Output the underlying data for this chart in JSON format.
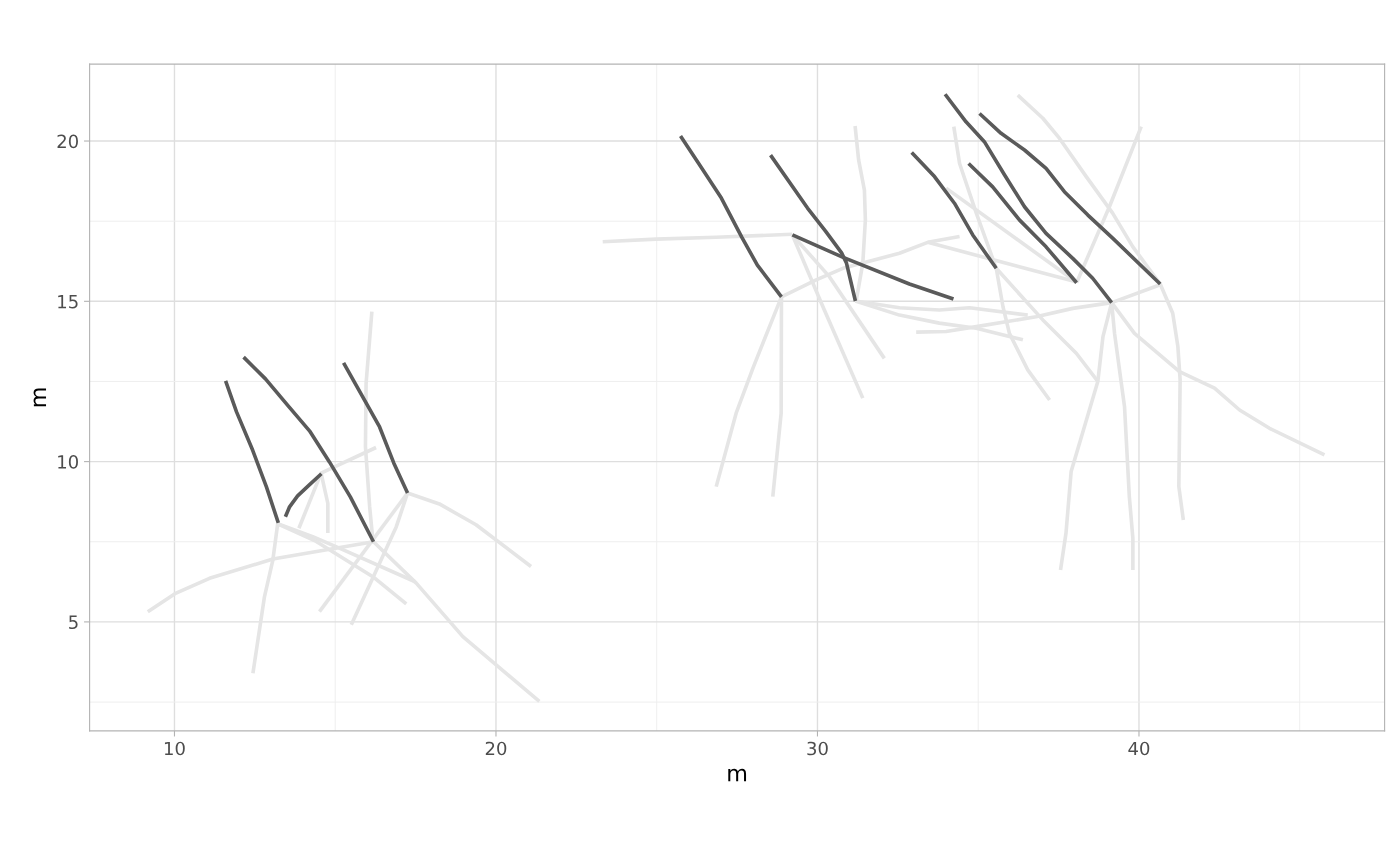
{
  "chart_data": {
    "type": "line",
    "xlabel": "m",
    "ylabel": "m",
    "xlim": [
      7.36,
      47.64
    ],
    "ylim": [
      1.6,
      22.4
    ],
    "xticks": [
      10,
      {
        "value": 15,
        "label": null
      },
      20,
      {
        "value": 25,
        "label": null
      },
      30,
      {
        "value": 35,
        "label": null
      },
      40,
      {
        "value": 45,
        "label": null
      }
    ],
    "yticks": [
      {
        "value": 2.5,
        "label": null
      },
      5,
      {
        "value": 7.5,
        "label": null
      },
      10,
      {
        "value": 12.5,
        "label": null
      },
      15,
      {
        "value": 17.5,
        "label": null
      },
      20
    ],
    "grid": true,
    "line_style": "solid",
    "marker": "none",
    "series": [
      {
        "color": "#e5e5e5",
        "x": [
          16.14,
          15.96,
          15.94,
          16.07,
          16.17
        ],
        "values": [
          14.68,
          12.44,
          10.47,
          8.6,
          7.56
        ]
      },
      {
        "color": "#e5e5e5",
        "x": [
          16.27,
          14.56,
          13.87
        ],
        "values": [
          10.44,
          9.64,
          7.92
        ]
      },
      {
        "color": "#e5e5e5",
        "x": [
          14.56,
          14.77,
          14.77
        ],
        "values": [
          9.64,
          8.7,
          7.77
        ]
      },
      {
        "color": "#e5e5e5",
        "x": [
          13.21,
          13.06,
          12.8,
          12.44
        ],
        "values": [
          8.06,
          6.93,
          5.79,
          3.4
        ]
      },
      {
        "color": "#e5e5e5",
        "x": [
          13.21,
          14.3,
          15.13,
          17.47
        ],
        "values": [
          8.06,
          7.66,
          7.3,
          6.26
        ]
      },
      {
        "color": "#e5e5e5",
        "x": [
          13.21,
          14.41,
          16.17,
          17.21
        ],
        "values": [
          8.06,
          7.51,
          6.41,
          5.56
        ]
      },
      {
        "color": "#e5e5e5",
        "x": [
          9.17,
          10.05,
          11.09,
          13.06,
          16.19
        ],
        "values": [
          5.32,
          5.9,
          6.36,
          6.96,
          7.5
        ]
      },
      {
        "color": "#e5e5e5",
        "x": [
          17.25,
          18.24,
          19.38,
          21.09
        ],
        "values": [
          9.02,
          8.68,
          8.03,
          6.73
        ]
      },
      {
        "color": "#e5e5e5",
        "x": [
          17.25,
          14.51
        ],
        "values": [
          9.02,
          5.32
        ]
      },
      {
        "color": "#e5e5e5",
        "x": [
          17.25,
          16.9,
          15.5
        ],
        "values": [
          9.02,
          7.97,
          4.91
        ]
      },
      {
        "color": "#e5e5e5",
        "x": [
          16.19,
          17.52,
          18.97,
          21.35
        ],
        "values": [
          7.5,
          6.21,
          4.54,
          2.52
        ]
      },
      {
        "color": "#e5e5e5",
        "x": [
          23.32,
          24.98,
          26.85,
          29.21
        ],
        "values": [
          16.86,
          16.94,
          17.0,
          17.09
        ]
      },
      {
        "color": "#e5e5e5",
        "x": [
          28.88,
          28.87,
          28.61
        ],
        "values": [
          15.14,
          11.51,
          8.91
        ]
      },
      {
        "color": "#e5e5e5",
        "x": [
          28.88,
          27.99,
          27.47,
          26.85
        ],
        "values": [
          15.14,
          12.91,
          11.51,
          9.22
        ]
      },
      {
        "color": "#e5e5e5",
        "x": [
          28.88,
          29.96,
          30.79,
          32.55,
          33.43,
          34.42
        ],
        "values": [
          15.14,
          15.67,
          16.03,
          16.5,
          16.84,
          17.02
        ]
      },
      {
        "color": "#e5e5e5",
        "x": [
          29.22,
          30.37,
          32.08
        ],
        "values": [
          17.07,
          15.77,
          13.22
        ]
      },
      {
        "color": "#e5e5e5",
        "x": [
          29.22,
          30.17,
          31.41
        ],
        "values": [
          17.07,
          14.83,
          11.98
        ]
      },
      {
        "color": "#e5e5e5",
        "x": [
          31.17,
          31.28,
          31.46,
          31.49,
          31.41,
          31.2
        ],
        "values": [
          20.47,
          19.41,
          18.47,
          17.54,
          16.19,
          14.99
        ]
      },
      {
        "color": "#e5e5e5",
        "x": [
          31.18,
          32.55,
          33.79,
          34.73,
          36.54
        ],
        "values": [
          15.01,
          14.8,
          14.73,
          14.8,
          14.57
        ]
      },
      {
        "color": "#e5e5e5",
        "x": [
          31.18,
          32.55,
          33.79,
          34.94,
          36.39
        ],
        "values": [
          15.01,
          14.57,
          14.32,
          14.16,
          13.8
        ]
      },
      {
        "color": "#e5e5e5",
        "x": [
          33.07,
          34.0,
          34.94,
          36.8,
          37.94,
          39.15,
          40.64
        ],
        "values": [
          14.04,
          14.06,
          14.21,
          14.52,
          14.78,
          14.96,
          15.51
        ]
      },
      {
        "color": "#e5e5e5",
        "x": [
          34.24,
          34.42,
          34.94,
          35.56,
          35.77,
          35.97,
          36.54,
          37.22
        ],
        "values": [
          20.45,
          19.3,
          17.75,
          16.03,
          14.83,
          14.0,
          12.86,
          11.92
        ]
      },
      {
        "color": "#e5e5e5",
        "x": [
          35.56,
          37.01,
          38.05,
          38.72
        ],
        "values": [
          16.03,
          14.42,
          13.38,
          12.5
        ]
      },
      {
        "color": "#e5e5e5",
        "x": [
          39.15,
          38.88,
          38.72,
          37.89,
          37.73,
          37.56
        ],
        "values": [
          14.96,
          13.9,
          12.5,
          9.69,
          7.77,
          6.62
        ]
      },
      {
        "color": "#e5e5e5",
        "x": [
          39.15,
          39.24,
          39.55,
          39.7,
          39.81,
          39.81
        ],
        "values": [
          14.96,
          14.0,
          11.72,
          8.91,
          7.61,
          6.62
        ]
      },
      {
        "color": "#e5e5e5",
        "x": [
          39.15,
          39.86,
          41.26,
          42.35,
          43.13,
          44.06,
          45.77
        ],
        "values": [
          14.96,
          14.0,
          12.81,
          12.29,
          11.61,
          11.04,
          10.21
        ]
      },
      {
        "color": "#e5e5e5",
        "x": [
          36.23,
          37.01,
          37.53,
          38.36,
          39.18,
          39.81,
          40.66,
          41.05,
          41.21,
          41.28,
          41.24,
          41.38
        ],
        "values": [
          21.43,
          20.71,
          20.08,
          18.89,
          17.75,
          16.7,
          15.54,
          14.63,
          13.59,
          12.55,
          9.22,
          8.18
        ]
      },
      {
        "color": "#e5e5e5",
        "x": [
          38.06,
          39.08,
          40.07
        ],
        "values": [
          15.58,
          17.95,
          20.45
        ]
      },
      {
        "color": "#e5e5e5",
        "x": [
          34.0,
          38.04
        ],
        "values": [
          18.53,
          15.61
        ]
      },
      {
        "color": "#e5e5e5",
        "x": [
          33.43,
          38.04
        ],
        "values": [
          16.84,
          15.61
        ]
      },
      {
        "color": "#5a5a5a",
        "x": [
          11.59,
          11.93,
          12.43,
          12.86,
          13.23
        ],
        "values": [
          12.52,
          11.55,
          10.36,
          9.21,
          8.09
        ]
      },
      {
        "color": "#5a5a5a",
        "x": [
          12.15,
          12.83,
          13.51,
          14.2,
          14.82,
          15.47,
          16.19
        ],
        "values": [
          13.26,
          12.58,
          11.77,
          10.96,
          9.99,
          8.9,
          7.5
        ]
      },
      {
        "color": "#5a5a5a",
        "x": [
          13.45,
          13.58,
          13.83,
          14.17,
          14.57
        ],
        "values": [
          8.28,
          8.59,
          8.93,
          9.25,
          9.62
        ]
      },
      {
        "color": "#5a5a5a",
        "x": [
          15.26,
          15.82,
          16.38,
          16.82,
          17.25
        ],
        "values": [
          13.08,
          12.08,
          11.08,
          9.96,
          9.02
        ]
      },
      {
        "color": "#5a5a5a",
        "x": [
          25.74,
          26.3,
          27.01,
          27.64,
          28.13,
          28.88
        ],
        "values": [
          20.16,
          19.31,
          18.22,
          17.01,
          16.13,
          15.14
        ]
      },
      {
        "color": "#5a5a5a",
        "x": [
          28.54,
          29.69,
          30.25,
          30.75,
          30.9,
          31.18
        ],
        "values": [
          19.56,
          17.91,
          17.19,
          16.51,
          16.2,
          15.01
        ]
      },
      {
        "color": "#5a5a5a",
        "x": [
          29.22,
          30.78,
          32.86,
          34.23
        ],
        "values": [
          17.07,
          16.38,
          15.54,
          15.07
        ]
      },
      {
        "color": "#5a5a5a",
        "x": [
          33.97,
          34.62,
          35.19,
          35.82,
          36.44,
          37.11,
          37.94,
          38.56,
          39.15
        ],
        "values": [
          21.46,
          20.6,
          19.98,
          18.94,
          17.95,
          17.12,
          16.34,
          15.72,
          14.96
        ]
      },
      {
        "color": "#5a5a5a",
        "x": [
          35.04,
          35.71,
          36.44,
          37.11,
          37.68,
          38.41,
          39.18,
          40.66
        ],
        "values": [
          20.86,
          20.24,
          19.72,
          19.15,
          18.42,
          17.69,
          16.97,
          15.54
        ]
      },
      {
        "color": "#5a5a5a",
        "x": [
          32.93,
          33.64,
          34.26,
          34.83,
          35.56
        ],
        "values": [
          19.64,
          18.89,
          18.06,
          17.07,
          16.03
        ]
      },
      {
        "color": "#5a5a5a",
        "x": [
          34.7,
          35.45,
          36.28,
          37.11,
          38.06
        ],
        "values": [
          19.3,
          18.57,
          17.54,
          16.7,
          15.58
        ]
      }
    ]
  }
}
